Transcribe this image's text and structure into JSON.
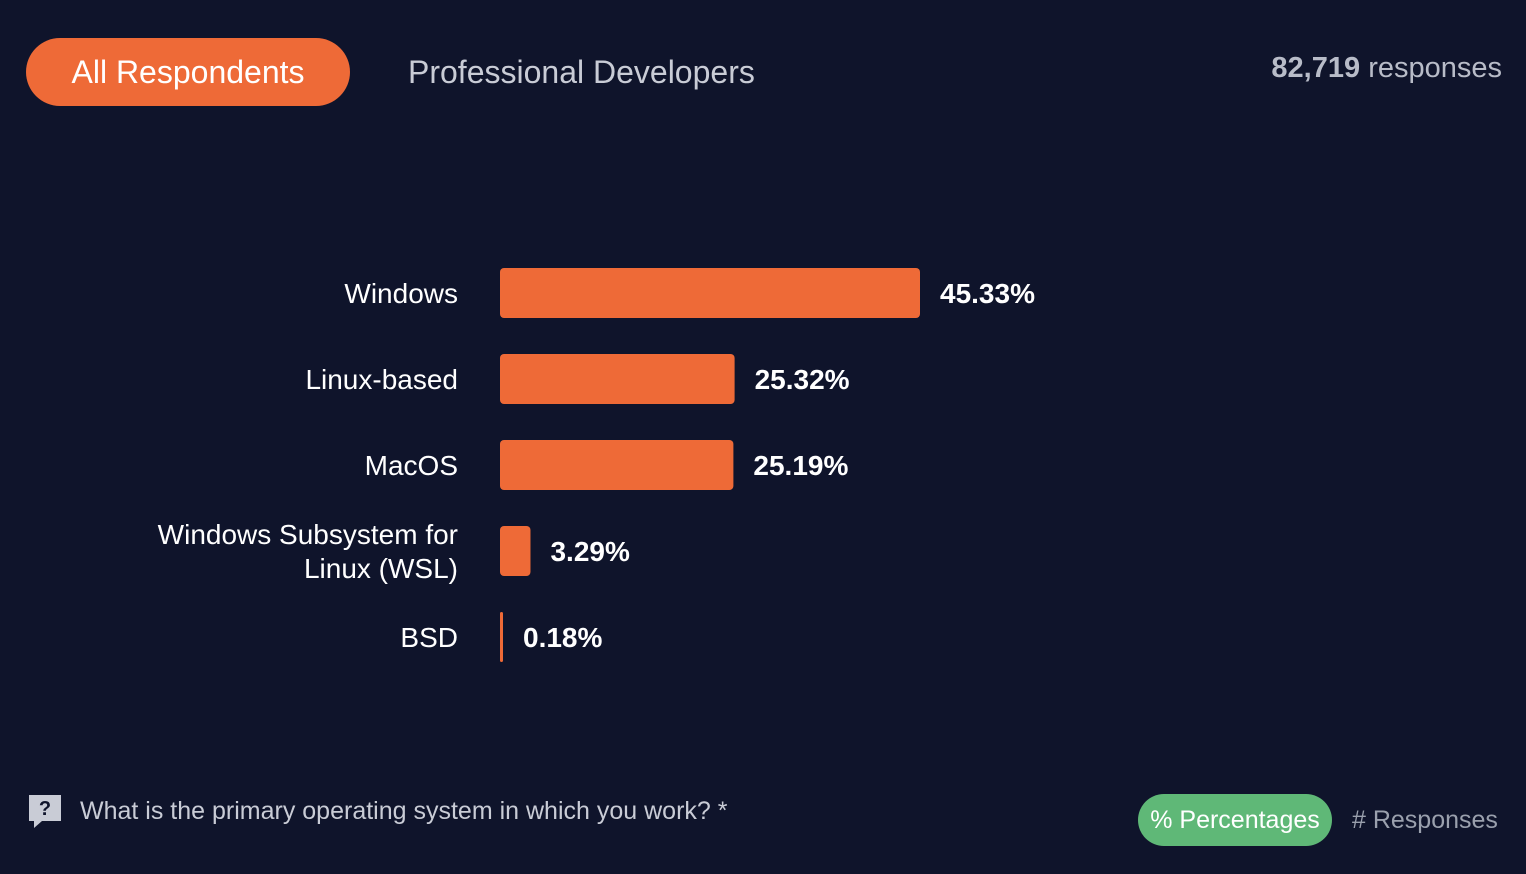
{
  "tabs": {
    "all_label": "All Respondents",
    "pro_label": "Professional Developers"
  },
  "responses": {
    "count": "82,719",
    "label": "responses"
  },
  "question": {
    "text": "What is the primary operating system in which you work? *"
  },
  "toggle": {
    "percent_label": "% Percentages",
    "count_label": "# Responses"
  },
  "colors": {
    "bar": "#ee6a37",
    "background": "#0f142b",
    "toggle_active": "#5fb877"
  },
  "chart_data": {
    "type": "bar",
    "orientation": "horizontal",
    "categories": [
      "Windows",
      "Linux-based",
      "MacOS",
      "Windows Subsystem for Linux (WSL)",
      "BSD"
    ],
    "category_lines": [
      [
        "Windows"
      ],
      [
        "Linux-based"
      ],
      [
        "MacOS"
      ],
      [
        "Windows Subsystem for",
        "Linux (WSL)"
      ],
      [
        "BSD"
      ]
    ],
    "values": [
      45.33,
      25.32,
      25.19,
      3.29,
      0.18
    ],
    "value_labels": [
      "45.33%",
      "25.32%",
      "25.19%",
      "3.29%",
      "0.18%"
    ],
    "unit": "%",
    "xlim": [
      0,
      45.33
    ]
  }
}
